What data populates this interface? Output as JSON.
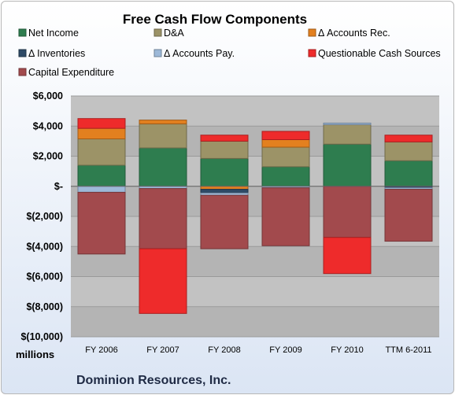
{
  "chart_data": {
    "type": "bar",
    "stacked": true,
    "title": "Free Cash Flow Components",
    "unit_label": "millions",
    "footer": "Dominion Resources, Inc.",
    "categories": [
      "FY 2006",
      "FY 2007",
      "FY 2008",
      "FY 2009",
      "FY 2010",
      "TTM 6-2011"
    ],
    "ylim": [
      -10000,
      6000
    ],
    "yticks": [
      6000,
      4000,
      2000,
      0,
      -2000,
      -4000,
      -6000,
      -8000,
      -10000
    ],
    "ytick_labels": [
      "$6,000",
      "$4,000",
      "$2,000",
      "$-",
      "$(2,000)",
      "$(4,000)",
      "$(6,000)",
      "$(8,000)",
      "$(10,000)"
    ],
    "legend_position": "top",
    "grid": true,
    "series": [
      {
        "name": "Net Income",
        "color": "#2e7d4f",
        "values": [
          1400,
          2550,
          1850,
          1300,
          2800,
          1700
        ]
      },
      {
        "name": "D&A",
        "color": "#9c9367",
        "values": [
          1750,
          1600,
          1150,
          1300,
          1300,
          1250
        ]
      },
      {
        "name": "Δ Accounts Rec.",
        "color": "#e3801f",
        "values": [
          700,
          250,
          -200,
          500,
          0,
          0
        ]
      },
      {
        "name": "Δ Inventories",
        "color": "#2e4a66",
        "values": [
          0,
          0,
          -250,
          0,
          0,
          -100
        ]
      },
      {
        "name": "Δ Accounts Pay.",
        "color": "#9db9d8",
        "values": [
          -400,
          -150,
          -150,
          -100,
          100,
          -100
        ]
      },
      {
        "name": "Questionable Cash Sources",
        "color": "#ee2b2b",
        "values": [
          650,
          0,
          400,
          550,
          0,
          450
        ]
      },
      {
        "name": "Capital Expenditure",
        "color": "#a24a4d",
        "values": [
          -4100,
          -4000,
          -3550,
          -3850,
          -3400,
          -3450
        ]
      },
      {
        "name": "Questionable Cash Sources",
        "color": "#ee2b2b",
        "legend": false,
        "values": [
          0,
          -4300,
          0,
          0,
          -2400,
          0
        ]
      }
    ]
  }
}
